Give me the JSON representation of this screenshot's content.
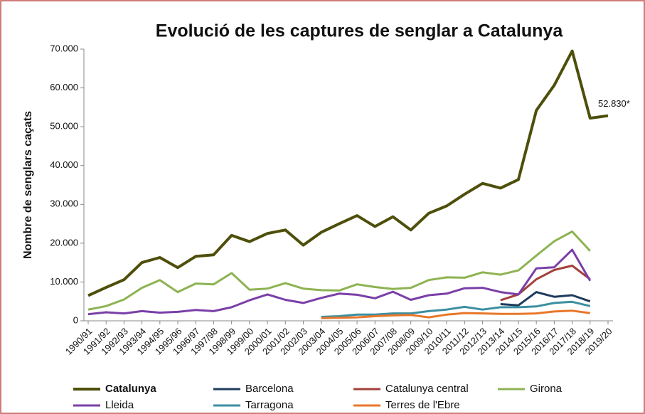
{
  "chart_data": {
    "type": "line",
    "title": "Evolució de les captures de senglar a Catalunya",
    "y_label": "Nombre de senglars caçats",
    "categories": [
      "1990/91",
      "1991/92",
      "1992/93",
      "1993/94",
      "1994/95",
      "1995/96",
      "1996/97",
      "1997/98",
      "1998/99",
      "1999/00",
      "2000/01",
      "2001/02",
      "2002/03",
      "2003/04",
      "2004/05",
      "2005/06",
      "2006/07",
      "2007/08",
      "2008/09",
      "2009/10",
      "2010/11",
      "2011/12",
      "2012/13",
      "2013/14",
      "2014/15",
      "2015/16",
      "2016/17",
      "2017/18",
      "2018/19",
      "2019/20"
    ],
    "series": [
      {
        "name": "Catalunya",
        "color": "#4d4f0b",
        "values": [
          6500,
          8600,
          10600,
          15000,
          16300,
          13700,
          16600,
          17000,
          22000,
          20400,
          22500,
          23400,
          19500,
          22800,
          25000,
          27100,
          24300,
          26800,
          23400,
          27700,
          29600,
          32600,
          35400,
          34200,
          36400,
          54200,
          60700,
          69500,
          52200,
          52830
        ],
        "value_labels": [
          null,
          null,
          null,
          null,
          null,
          null,
          null,
          null,
          null,
          null,
          null,
          null,
          null,
          null,
          null,
          null,
          null,
          null,
          null,
          null,
          null,
          null,
          null,
          null,
          null,
          null,
          null,
          null,
          null,
          "52.830*"
        ]
      },
      {
        "name": "Barcelona",
        "color": "#1f3b5c",
        "values": [
          null,
          null,
          null,
          null,
          null,
          null,
          null,
          null,
          null,
          null,
          null,
          null,
          null,
          null,
          null,
          null,
          null,
          null,
          null,
          null,
          null,
          null,
          null,
          4300,
          4000,
          7400,
          6200,
          6600,
          5000,
          null
        ]
      },
      {
        "name": "Catalunya central",
        "color": "#a3403a",
        "values": [
          null,
          null,
          null,
          null,
          null,
          null,
          null,
          null,
          null,
          null,
          null,
          null,
          null,
          null,
          null,
          null,
          null,
          null,
          null,
          null,
          null,
          null,
          null,
          5300,
          6800,
          10700,
          13100,
          14200,
          10700,
          null
        ]
      },
      {
        "name": "Girona",
        "color": "#8db352",
        "values": [
          2900,
          3800,
          5500,
          8500,
          10500,
          7400,
          9600,
          9400,
          12300,
          8000,
          8300,
          9700,
          8300,
          7900,
          7800,
          9400,
          8700,
          8200,
          8500,
          10500,
          11200,
          11100,
          12500,
          11900,
          13000,
          16800,
          20500,
          23000,
          18000,
          null
        ]
      },
      {
        "name": "Lleida",
        "color": "#7a3fa8",
        "values": [
          1700,
          2200,
          1900,
          2500,
          2100,
          2300,
          2800,
          2500,
          3500,
          5300,
          6800,
          5400,
          4600,
          5900,
          7000,
          6700,
          5800,
          7500,
          5400,
          6600,
          7000,
          8400,
          8500,
          7400,
          6800,
          13500,
          13800,
          18300,
          10300,
          null
        ]
      },
      {
        "name": "Tarragona",
        "color": "#3b8fa1",
        "values": [
          null,
          null,
          null,
          null,
          null,
          null,
          null,
          null,
          null,
          null,
          null,
          null,
          null,
          1000,
          1200,
          1600,
          1600,
          1900,
          1900,
          2500,
          2900,
          3600,
          2900,
          3500,
          3500,
          3700,
          4600,
          4900,
          3800,
          null
        ]
      },
      {
        "name": "Terres de l'Ebre",
        "color": "#e8772a",
        "values": [
          null,
          null,
          null,
          null,
          null,
          null,
          null,
          null,
          null,
          null,
          null,
          null,
          null,
          700,
          800,
          900,
          1200,
          1400,
          1500,
          900,
          1600,
          2000,
          1900,
          1800,
          1800,
          1900,
          2400,
          2600,
          2000,
          null
        ]
      }
    ],
    "ylim": [
      0,
      70000
    ],
    "yticks": [
      0,
      {
        "value": 10000,
        "label": "10.000"
      },
      {
        "value": 20000,
        "label": "20.000"
      },
      {
        "value": 30000,
        "label": "30.000"
      },
      {
        "value": 40000,
        "label": "40.000"
      },
      {
        "value": 50000,
        "label": "50.000"
      },
      {
        "value": 60000,
        "label": "60.000"
      },
      {
        "value": 70000,
        "label": "70.000"
      }
    ],
    "legend": "bottom"
  }
}
